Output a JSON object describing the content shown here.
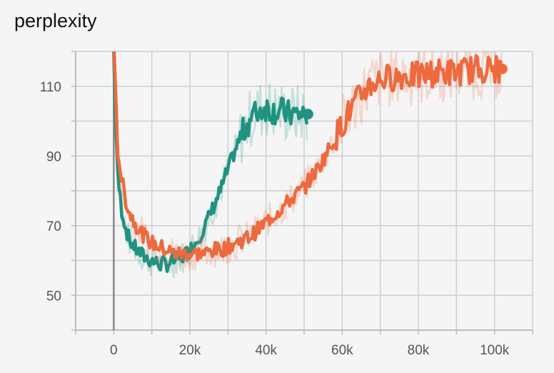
{
  "title": "perplexity",
  "chart_data": {
    "type": "line",
    "title": "perplexity",
    "xlabel": "",
    "ylabel": "",
    "xlim": [
      -10000,
      110000
    ],
    "ylim": [
      40,
      120
    ],
    "grid": true,
    "xticks": [
      0,
      20000,
      40000,
      60000,
      80000,
      100000
    ],
    "xtick_labels": [
      "0",
      "20k",
      "40k",
      "60k",
      "80k",
      "100k"
    ],
    "yticks": [
      50,
      70,
      90,
      110
    ],
    "ytick_labels": [
      "50",
      "70",
      "90",
      "110"
    ],
    "series": [
      {
        "color": "#1f9280",
        "x": [
          0,
          500,
          1000,
          2000,
          3000,
          4000,
          6000,
          8000,
          10000,
          12000,
          14000,
          16000,
          18000,
          20000,
          22000,
          24000,
          26000,
          28000,
          30000,
          32000,
          34000,
          36000,
          38000,
          40000,
          42000,
          44000,
          46000,
          48000,
          50000,
          51000
        ],
        "y": [
          120,
          100,
          85,
          75,
          70,
          66,
          63,
          61,
          60,
          59,
          59,
          60,
          61,
          63,
          66,
          70,
          75,
          80,
          86,
          92,
          97,
          101,
          103,
          104,
          103,
          103,
          102,
          102,
          102,
          102
        ]
      },
      {
        "color": "#ee6a3e",
        "x": [
          0,
          500,
          1000,
          2000,
          3000,
          4000,
          6000,
          8000,
          10000,
          12000,
          14000,
          16000,
          18000,
          20000,
          22000,
          24000,
          26000,
          28000,
          30000,
          32000,
          34000,
          36000,
          38000,
          40000,
          42000,
          44000,
          46000,
          48000,
          50000,
          52000,
          54000,
          56000,
          58000,
          60000,
          62000,
          64000,
          66000,
          68000,
          70000,
          75000,
          80000,
          85000,
          90000,
          95000,
          100000,
          102000
        ],
        "y": [
          120,
          105,
          92,
          84,
          78,
          74,
          70,
          67,
          65,
          64,
          63,
          62,
          62,
          62,
          62,
          62,
          63,
          63,
          64,
          65,
          66,
          67,
          69,
          71,
          73,
          75,
          77,
          79,
          81,
          84,
          87,
          91,
          95,
          99,
          103,
          106,
          109,
          111,
          112,
          113,
          113,
          114,
          114,
          115,
          115,
          115
        ]
      }
    ]
  }
}
